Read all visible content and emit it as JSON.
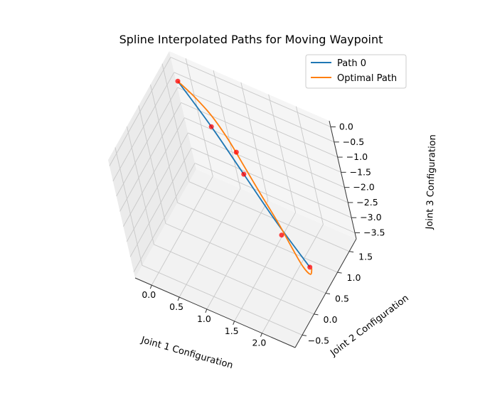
{
  "chart_data": {
    "type": "line3d",
    "title": "Spline Interpolated Paths for Moving Waypoint",
    "xlabel": "Joint 1 Configuration",
    "ylabel": "Joint 2 Configuration",
    "zlabel": "Joint 3 Configuration",
    "xlim": [
      -0.3,
      2.6
    ],
    "ylim": [
      -0.8,
      1.8
    ],
    "zlim": [
      -3.7,
      0.2
    ],
    "xticks": [
      "0.0",
      "0.5",
      "1.0",
      "1.5",
      "2.0"
    ],
    "yticks": [
      "−0.5",
      "0.0",
      "0.5",
      "1.0",
      "1.5"
    ],
    "zticks": [
      "0.0",
      "−0.5",
      "−1.0",
      "−1.5",
      "−2.0",
      "−2.5",
      "−3.0",
      "−3.5"
    ],
    "legend_position": "upper-right",
    "grid": true,
    "series": [
      {
        "name": "Path 0",
        "color": "#1f77b4",
        "x": [
          0.0,
          0.6,
          1.2,
          1.8,
          2.4
        ],
        "y": [
          1.4,
          1.2,
          0.95,
          0.7,
          0.5
        ],
        "z": [
          0.0,
          -0.75,
          -1.5,
          -2.25,
          -3.0
        ]
      },
      {
        "name": "Optimal Path",
        "color": "#ff7f0e",
        "x": [
          0.0,
          0.3,
          0.6,
          0.9,
          1.2,
          1.5,
          1.8,
          2.05,
          2.25,
          2.38,
          2.42
        ],
        "y": [
          1.4,
          1.35,
          1.28,
          1.17,
          1.02,
          0.88,
          0.75,
          0.62,
          0.52,
          0.5,
          0.52
        ],
        "z": [
          0.0,
          -0.22,
          -0.5,
          -0.9,
          -1.35,
          -1.85,
          -2.35,
          -2.8,
          -3.12,
          -3.25,
          -3.05
        ]
      }
    ],
    "markers": {
      "color": "#ff0000",
      "points": [
        {
          "x": 0.0,
          "y": 1.4,
          "z": 0.0
        },
        {
          "x": 0.6,
          "y": 1.2,
          "z": -0.75
        },
        {
          "x": 1.05,
          "y": 1.1,
          "z": -1.1
        },
        {
          "x": 1.2,
          "y": 0.95,
          "z": -1.5
        },
        {
          "x": 1.9,
          "y": 0.62,
          "z": -2.5
        },
        {
          "x": 2.4,
          "y": 0.5,
          "z": -3.0
        }
      ]
    }
  }
}
